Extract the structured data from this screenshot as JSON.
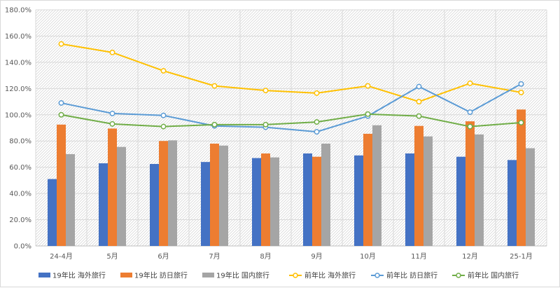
{
  "chart_data": {
    "type": "bar",
    "categories": [
      "24-4月",
      "5月",
      "6月",
      "7月",
      "8月",
      "9月",
      "10月",
      "11月",
      "12月",
      "25-1月"
    ],
    "y_ticks": [
      "0.0%",
      "20.0%",
      "40.0%",
      "60.0%",
      "80.0%",
      "100.0%",
      "120.0%",
      "140.0%",
      "160.0%",
      "180.0%"
    ],
    "ylim": [
      0,
      180
    ],
    "y_unit": "%",
    "grid": true,
    "legend_position": "bottom",
    "bar_series": [
      {
        "name": "19年比 海外旅行",
        "color": "#4472C4",
        "values": [
          51.0,
          63.0,
          62.5,
          64.0,
          67.0,
          70.5,
          69.0,
          70.5,
          68.0,
          65.5
        ]
      },
      {
        "name": "19年比 訪日旅行",
        "color": "#ED7D31",
        "values": [
          92.5,
          89.5,
          80.0,
          78.0,
          70.5,
          68.0,
          85.5,
          91.5,
          95.0,
          104.0
        ]
      },
      {
        "name": "19年比 国内旅行",
        "color": "#A5A5A5",
        "values": [
          70.0,
          75.5,
          80.5,
          76.5,
          67.5,
          78.0,
          92.0,
          83.5,
          85.0,
          74.5
        ]
      }
    ],
    "line_series": [
      {
        "name": "前年比 海外旅行",
        "color": "#FFC000",
        "values": [
          154.0,
          147.5,
          133.5,
          122.0,
          118.5,
          116.5,
          122.0,
          110.0,
          124.0,
          117.0
        ]
      },
      {
        "name": "前年比 訪日旅行",
        "color": "#5B9BD5",
        "values": [
          109.0,
          101.0,
          99.5,
          91.5,
          90.5,
          87.0,
          99.0,
          121.5,
          102.0,
          123.5
        ]
      },
      {
        "name": "前年比 国内旅行",
        "color": "#70AD47",
        "values": [
          100.0,
          93.0,
          91.0,
          92.5,
          92.5,
          94.5,
          100.5,
          99.0,
          91.0,
          94.0
        ]
      }
    ]
  }
}
